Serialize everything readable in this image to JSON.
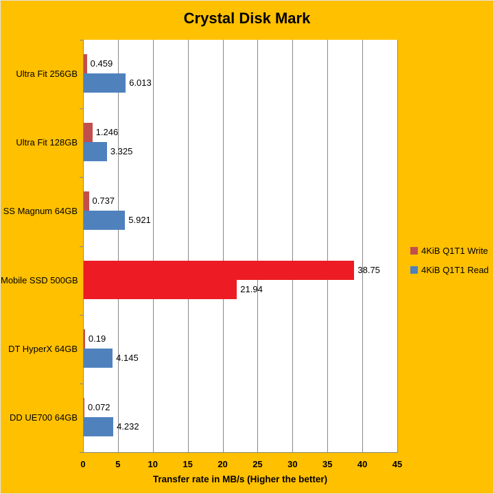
{
  "title": "Crystal Disk Mark",
  "colors": {
    "background": "#FFC000",
    "plot_background": "#FFFFFF",
    "gridline": "#878787",
    "axis_line": "#878787",
    "write_series": "#C0504D",
    "read_series": "#4F81BD",
    "highlight_red": "#ED1C24",
    "text": "#000000"
  },
  "chart_data": {
    "type": "bar",
    "orientation": "horizontal",
    "title": "Crystal Disk Mark",
    "xlabel": "Transfer rate in MB/s (Higher the better)",
    "xlim": [
      0,
      45
    ],
    "xticks": [
      0,
      5,
      10,
      15,
      20,
      25,
      30,
      35,
      40,
      45
    ],
    "grid": true,
    "legend_position": "right",
    "categories": [
      "Ultra Fit 256GB",
      "Ultra Fit 128GB",
      "SS Magnum 64GB",
      "Mobile SSD 500GB",
      "DT HyperX 64GB",
      "DD UE700 64GB"
    ],
    "series": [
      {
        "name": "4KiB Q1T1 Write",
        "color": "#C0504D",
        "values": [
          0.459,
          1.246,
          0.737,
          38.75,
          0.19,
          0.072
        ],
        "labels": [
          "0.459",
          "1.246",
          "0.737",
          "38.75",
          "0.19",
          "0.072"
        ]
      },
      {
        "name": "4KiB Q1T1 Read",
        "color": "#4F81BD",
        "values": [
          6.013,
          3.325,
          5.921,
          21.94,
          4.145,
          4.232
        ],
        "labels": [
          "6.013",
          "3.325",
          "5.921",
          "21.94",
          "4.145",
          "4.232"
        ]
      }
    ],
    "highlighted_category": "Mobile SSD 500GB",
    "highlight_color": "#ED1C24"
  },
  "legend": {
    "items": [
      {
        "label": "4KiB Q1T1 Write",
        "color": "#C0504D"
      },
      {
        "label": "4KiB Q1T1 Read",
        "color": "#4F81BD"
      }
    ]
  }
}
